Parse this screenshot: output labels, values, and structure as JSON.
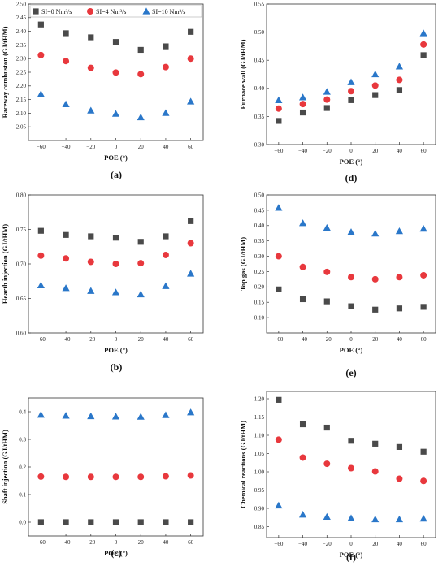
{
  "colors": {
    "series": [
      "#4a4a4a",
      "#e8383d",
      "#2a77c9"
    ],
    "axis": "#333333",
    "background": "#ffffff"
  },
  "legend": {
    "placement": "top of panel (a)",
    "items": [
      {
        "label": "SI=0 Nm³/s",
        "marker": "square"
      },
      {
        "label": "SI=4 Nm³/s",
        "marker": "circle"
      },
      {
        "label": "SI=10 Nm³/s",
        "marker": "triangle"
      }
    ]
  },
  "chart_data": [
    {
      "type": "scatter",
      "panel": "(a)",
      "xlabel": "POE (°)",
      "ylabel": "Raceway combuston (GJ/tHM)",
      "x": [
        -60,
        -40,
        -20,
        0,
        20,
        40,
        60
      ],
      "xticks": [
        "−60",
        "−40",
        "−20",
        "0",
        "20",
        "40",
        "60"
      ],
      "xlim": [
        -70,
        70
      ],
      "ylim": [
        2.0,
        2.5
      ],
      "yticks": [
        "2.05",
        "2.10",
        "2.15",
        "2.20",
        "2.25",
        "2.30",
        "2.35",
        "2.40",
        "2.45",
        "2.50"
      ],
      "series": [
        {
          "name": "SI=0 Nm³/s",
          "values": [
            2.425,
            2.393,
            2.378,
            2.361,
            2.332,
            2.345,
            2.398
          ]
        },
        {
          "name": "SI=4 Nm³/s",
          "values": [
            2.313,
            2.291,
            2.266,
            2.249,
            2.243,
            2.269,
            2.3
          ]
        },
        {
          "name": "SI=10 Nm³/s",
          "values": [
            2.17,
            2.133,
            2.11,
            2.098,
            2.085,
            2.101,
            2.143
          ]
        }
      ]
    },
    {
      "type": "scatter",
      "panel": "(d)",
      "xlabel": "POE (°)",
      "ylabel": "Furnace wall (GJ/tHM)",
      "x": [
        -60,
        -40,
        -20,
        0,
        20,
        40,
        60
      ],
      "xticks": [
        "−60",
        "−40",
        "−20",
        "0",
        "20",
        "40",
        "60"
      ],
      "xlim": [
        -70,
        70
      ],
      "ylim": [
        0.3,
        0.55
      ],
      "yticks": [
        "0.30",
        "0.35",
        "0.40",
        "0.45",
        "0.50",
        "0.55"
      ],
      "series": [
        {
          "name": "SI=0 Nm³/s",
          "values": [
            0.342,
            0.357,
            0.365,
            0.379,
            0.388,
            0.397,
            0.459
          ]
        },
        {
          "name": "SI=4 Nm³/s",
          "values": [
            0.364,
            0.372,
            0.38,
            0.395,
            0.405,
            0.415,
            0.478
          ]
        },
        {
          "name": "SI=10 Nm³/s",
          "values": [
            0.379,
            0.384,
            0.394,
            0.411,
            0.425,
            0.439,
            0.498
          ]
        }
      ]
    },
    {
      "type": "scatter",
      "panel": "(b)",
      "xlabel": "POE (°)",
      "ylabel": "Hearth injection (GJ/tHM)",
      "x": [
        -60,
        -40,
        -20,
        0,
        20,
        40,
        60
      ],
      "xticks": [
        "−60",
        "−40",
        "−20",
        "0",
        "20",
        "40",
        "60"
      ],
      "xlim": [
        -70,
        70
      ],
      "ylim": [
        0.6,
        0.8
      ],
      "yticks": [
        "0.60",
        "0.65",
        "0.70",
        "0.75",
        "0.80"
      ],
      "series": [
        {
          "name": "SI=0 Nm³/s",
          "values": [
            0.748,
            0.742,
            0.74,
            0.738,
            0.732,
            0.74,
            0.762
          ]
        },
        {
          "name": "SI=4 Nm³/s",
          "values": [
            0.712,
            0.708,
            0.703,
            0.7,
            0.701,
            0.713,
            0.73
          ]
        },
        {
          "name": "SI=10 Nm³/s",
          "values": [
            0.669,
            0.665,
            0.661,
            0.659,
            0.656,
            0.668,
            0.686
          ]
        }
      ]
    },
    {
      "type": "scatter",
      "panel": "(e)",
      "xlabel": "POE (°)",
      "ylabel": "Top gas (GJ/tHM)",
      "x": [
        -60,
        -40,
        -20,
        0,
        20,
        40,
        60
      ],
      "xticks": [
        "−60",
        "−40",
        "−20",
        "0",
        "20",
        "40",
        "60"
      ],
      "xlim": [
        -70,
        70
      ],
      "ylim": [
        0.05,
        0.5
      ],
      "yticks": [
        "0.10",
        "0.15",
        "0.20",
        "0.25",
        "0.30",
        "0.35",
        "0.40",
        "0.45",
        "0.50"
      ],
      "series": [
        {
          "name": "SI=0 Nm³/s",
          "values": [
            0.192,
            0.16,
            0.153,
            0.137,
            0.126,
            0.13,
            0.135
          ]
        },
        {
          "name": "SI=4 Nm³/s",
          "values": [
            0.3,
            0.265,
            0.249,
            0.232,
            0.225,
            0.232,
            0.238
          ]
        },
        {
          "name": "SI=10 Nm³/s",
          "values": [
            0.458,
            0.408,
            0.393,
            0.379,
            0.374,
            0.382,
            0.39
          ]
        }
      ]
    },
    {
      "type": "scatter",
      "panel": "(c)",
      "xlabel": "POE (°)",
      "ylabel": "Shaft injection (GJ/tHM)",
      "x": [
        -60,
        -40,
        -20,
        0,
        20,
        40,
        60
      ],
      "xticks": [
        "−60",
        "−40",
        "−20",
        "0",
        "20",
        "40",
        "60"
      ],
      "xlim": [
        -70,
        70
      ],
      "ylim": [
        -0.05,
        0.45
      ],
      "yticks": [
        "0.0",
        "0.1",
        "0.2",
        "0.3",
        "0.4"
      ],
      "series": [
        {
          "name": "SI=0 Nm³/s",
          "values": [
            0.0,
            0.0,
            0.0,
            0.0,
            0.0,
            0.0,
            0.0
          ]
        },
        {
          "name": "SI=4 Nm³/s",
          "values": [
            0.165,
            0.164,
            0.164,
            0.164,
            0.164,
            0.166,
            0.169
          ]
        },
        {
          "name": "SI=10 Nm³/s",
          "values": [
            0.389,
            0.386,
            0.384,
            0.383,
            0.382,
            0.388,
            0.398
          ]
        }
      ]
    },
    {
      "type": "scatter",
      "panel": "(f)",
      "xlabel": "POE (°)",
      "ylabel": "Chemical reactions (GJ/tHM)",
      "x": [
        -60,
        -40,
        -20,
        0,
        20,
        40,
        60
      ],
      "xticks": [
        "−60",
        "−40",
        "−20",
        "0",
        "20",
        "40",
        "60"
      ],
      "xlim": [
        -70,
        70
      ],
      "ylim": [
        0.82,
        1.22
      ],
      "yticks": [
        "0.85",
        "0.90",
        "0.95",
        "1.00",
        "1.05",
        "1.10",
        "1.15",
        "1.20"
      ],
      "series": [
        {
          "name": "SI=0 Nm³/s",
          "values": [
            1.197,
            1.13,
            1.121,
            1.085,
            1.077,
            1.068,
            1.055
          ]
        },
        {
          "name": "SI=4 Nm³/s",
          "values": [
            1.088,
            1.039,
            1.022,
            1.01,
            1.001,
            0.981,
            0.975
          ]
        },
        {
          "name": "SI=10 Nm³/s",
          "values": [
            0.908,
            0.883,
            0.877,
            0.873,
            0.87,
            0.87,
            0.872
          ]
        }
      ]
    }
  ]
}
